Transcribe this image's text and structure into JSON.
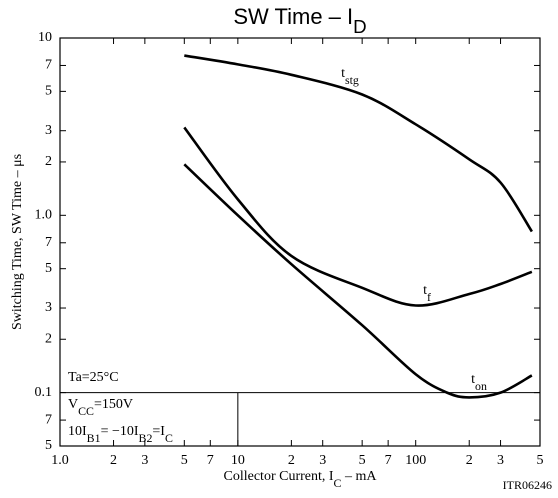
{
  "chart_data": {
    "type": "line",
    "title": [
      "SW Time  –  I",
      {
        "sub": "D"
      }
    ],
    "x_label": [
      "Collector Current, I",
      {
        "sub": "C"
      },
      "  –  mA"
    ],
    "y_label": "Switching Time, SW Time  –  μs",
    "log_x": true,
    "log_y": true,
    "xlim": [
      1,
      500
    ],
    "ylim": [
      0.05,
      10
    ],
    "xticks": [
      {
        "value": 1,
        "label": "1.0"
      },
      2,
      3,
      5,
      7,
      10,
      {
        "value": 20,
        "label": "2"
      },
      {
        "value": 30,
        "label": "3"
      },
      {
        "value": 50,
        "label": "5"
      },
      {
        "value": 70,
        "label": "7"
      },
      100,
      {
        "value": 200,
        "label": "2"
      },
      {
        "value": 300,
        "label": "3"
      },
      {
        "value": 500,
        "label": "5"
      }
    ],
    "yticks": [
      10,
      {
        "value": 7,
        "label": "7"
      },
      {
        "value": 5,
        "label": "5"
      },
      {
        "value": 3,
        "label": "3"
      },
      {
        "value": 2,
        "label": "2"
      },
      {
        "value": 1,
        "label": "1.0"
      },
      {
        "value": 0.7,
        "label": "7"
      },
      {
        "value": 0.5,
        "label": "5"
      },
      {
        "value": 0.3,
        "label": "3"
      },
      {
        "value": 0.2,
        "label": "2"
      },
      0.1,
      {
        "value": 0.07,
        "label": "7"
      },
      {
        "value": 0.05,
        "label": "5"
      }
    ],
    "series": [
      {
        "name": [
          "t",
          {
            "sub": "stg"
          }
        ],
        "color": "#000000",
        "x": [
          5,
          10,
          20,
          50,
          100,
          200,
          300,
          450
        ],
        "values": [
          7.96,
          7.1,
          6.2,
          4.8,
          3.26,
          2.07,
          1.53,
          0.81
        ]
      },
      {
        "name": [
          "t",
          {
            "sub": "f"
          }
        ],
        "color": "#000000",
        "x": [
          5,
          10,
          20,
          50,
          100,
          200,
          300,
          450
        ],
        "values": [
          3.13,
          1.23,
          0.59,
          0.39,
          0.31,
          0.36,
          0.41,
          0.48
        ]
      },
      {
        "name": [
          "t",
          {
            "sub": "on"
          }
        ],
        "color": "#000000",
        "x": [
          5,
          10,
          20,
          50,
          100,
          150,
          200,
          300,
          450
        ],
        "values": [
          1.94,
          1.0,
          0.53,
          0.24,
          0.127,
          0.1,
          0.094,
          0.1,
          0.125
        ]
      }
    ],
    "annotations": [
      [
        "Ta=25°C"
      ],
      [
        "V",
        {
          "sub": "CC"
        },
        "=150V"
      ],
      [
        "10I",
        {
          "sub": "B1"
        },
        "= −10I",
        {
          "sub": "B2"
        },
        "=I",
        {
          "sub": "C"
        }
      ]
    ],
    "figure_id": "ITR06246"
  }
}
